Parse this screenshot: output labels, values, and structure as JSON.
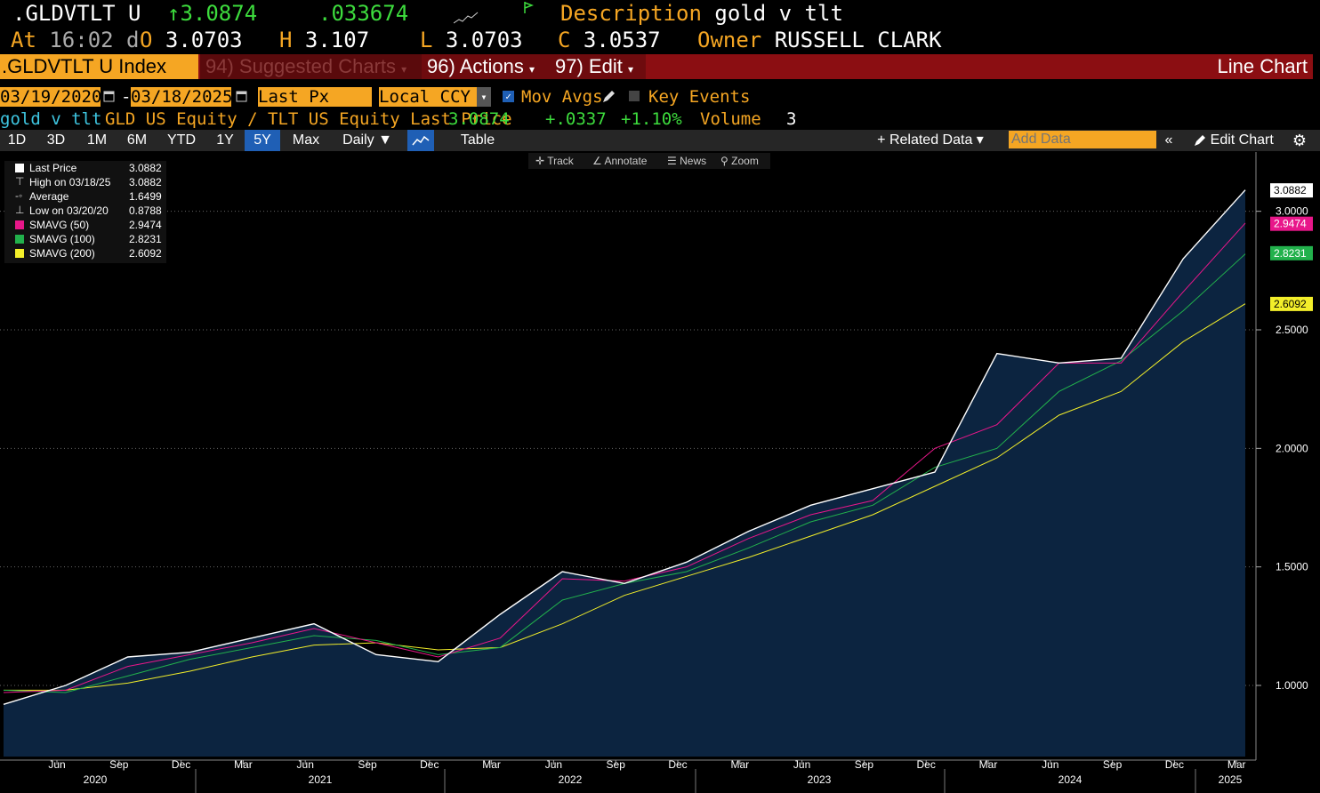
{
  "header": {
    "ticker": ".GLDVTLT U",
    "last": "3.0874",
    "change": ".033674",
    "desc_label": "Description",
    "desc_value": "gold v tlt",
    "at_label": "At",
    "at_value": "16:02 d",
    "open_label": "O",
    "open_value": "3.0703",
    "high_label": "H",
    "high_value": "3.107",
    "low_label": "L",
    "low_value": "3.0703",
    "close_label": "C",
    "close_value": "3.0537",
    "owner_label": "Owner",
    "owner_value": "RUSSELL CLARK"
  },
  "menubar": {
    "security": ".GLDVTLT U Index",
    "suggested": "94) Suggested Charts",
    "actions": "96) Actions",
    "edit": "97) Edit",
    "chart_type": "Line Chart"
  },
  "controls": {
    "start_date": "03/19/2020",
    "dash": "-",
    "end_date": "03/18/2025",
    "field": "Last Px",
    "currency": "Local CCY",
    "mov_avgs": "Mov Avgs",
    "key_events": "Key Events"
  },
  "info": {
    "name": "gold v tlt",
    "desc": "GLD US Equity / TLT US Equity Last Price",
    "price": "3.0874",
    "abs_change": "+.0337",
    "pct_change": "+1.10%",
    "volume_label": "Volume",
    "volume_value": "3"
  },
  "toolbar": {
    "periods": [
      "1D",
      "3D",
      "1M",
      "6M",
      "YTD",
      "1Y",
      "5Y",
      "Max"
    ],
    "selected": "5Y",
    "frequency": "Daily",
    "table": "Table",
    "related": "Related Data",
    "add_data_placeholder": "Add Data",
    "edit_chart": "Edit Chart"
  },
  "chart_tools": [
    "Track",
    "Annotate",
    "News",
    "Zoom"
  ],
  "legend": [
    {
      "label": "Last Price",
      "value": "3.0882",
      "color": "#ffffff",
      "marker": "square"
    },
    {
      "label": "High on 03/18/25",
      "value": "3.0882",
      "color": "#ffffff",
      "marker": "high"
    },
    {
      "label": "Average",
      "value": "1.6499",
      "color": "#ffffff",
      "marker": "avg"
    },
    {
      "label": "Low on 03/20/20",
      "value": "0.8788",
      "color": "#ffffff",
      "marker": "low"
    },
    {
      "label": "SMAVG (50)",
      "value": "2.9474",
      "color": "#e8178a",
      "marker": "square"
    },
    {
      "label": "SMAVG (100)",
      "value": "2.8231",
      "color": "#22b14c",
      "marker": "square"
    },
    {
      "label": "SMAVG (200)",
      "value": "2.6092",
      "color": "#f2ee2a",
      "marker": "square"
    }
  ],
  "chart_data": {
    "type": "line",
    "ylim": [
      0.7,
      3.25
    ],
    "yticks": [
      "1.0000",
      "1.5000",
      "2.0000",
      "2.5000",
      "3.0000"
    ],
    "ytick_values": [
      1.0,
      1.5,
      2.0,
      2.5,
      3.0
    ],
    "x_months": [
      "Jun",
      "Sep",
      "Dec",
      "Mar",
      "Jun",
      "Sep",
      "Dec",
      "Mar",
      "Jun",
      "Sep",
      "Dec",
      "Mar",
      "Jun",
      "Sep",
      "Dec",
      "Mar",
      "Jun",
      "Sep",
      "Dec",
      "Mar"
    ],
    "x_years": [
      "2020",
      "2021",
      "2022",
      "2023",
      "2024",
      "2025"
    ],
    "end_labels": [
      {
        "text": "3.0882",
        "value": 3.0882,
        "bg": "#ffffff",
        "fg": "#000000"
      },
      {
        "text": "2.9474",
        "value": 2.9474,
        "bg": "#e8178a",
        "fg": "#ffffff"
      },
      {
        "text": "2.8231",
        "value": 2.8231,
        "bg": "#22b14c",
        "fg": "#ffffff"
      },
      {
        "text": "2.6092",
        "value": 2.6092,
        "bg": "#f2ee2a",
        "fg": "#000000"
      }
    ],
    "x": [
      "2020-03",
      "2020-06",
      "2020-09",
      "2020-12",
      "2021-03",
      "2021-06",
      "2021-09",
      "2021-12",
      "2022-03",
      "2022-06",
      "2022-09",
      "2022-12",
      "2023-03",
      "2023-06",
      "2023-09",
      "2023-12",
      "2024-03",
      "2024-06",
      "2024-09",
      "2024-12",
      "2025-03"
    ],
    "series": [
      {
        "name": "Last Price",
        "color": "#ffffff",
        "values": [
          0.92,
          1.0,
          1.12,
          1.14,
          1.2,
          1.26,
          1.13,
          1.1,
          1.3,
          1.48,
          1.43,
          1.52,
          1.65,
          1.76,
          1.83,
          1.9,
          2.4,
          2.36,
          2.38,
          2.8,
          3.09
        ]
      },
      {
        "name": "SMAVG (50)",
        "color": "#e8178a",
        "values": [
          0.97,
          0.98,
          1.08,
          1.13,
          1.18,
          1.24,
          1.18,
          1.12,
          1.2,
          1.45,
          1.44,
          1.5,
          1.62,
          1.72,
          1.78,
          2.0,
          2.1,
          2.36,
          2.36,
          2.66,
          2.95
        ]
      },
      {
        "name": "SMAVG (100)",
        "color": "#22b14c",
        "values": [
          0.98,
          0.97,
          1.04,
          1.11,
          1.16,
          1.21,
          1.19,
          1.13,
          1.16,
          1.36,
          1.43,
          1.48,
          1.58,
          1.69,
          1.76,
          1.92,
          2.0,
          2.24,
          2.37,
          2.58,
          2.82
        ]
      },
      {
        "name": "SMAVG (200)",
        "color": "#f2ee2a",
        "values": [
          0.98,
          0.98,
          1.01,
          1.06,
          1.12,
          1.17,
          1.18,
          1.15,
          1.16,
          1.26,
          1.38,
          1.46,
          1.54,
          1.63,
          1.72,
          1.84,
          1.96,
          2.14,
          2.24,
          2.45,
          2.61
        ]
      }
    ]
  }
}
